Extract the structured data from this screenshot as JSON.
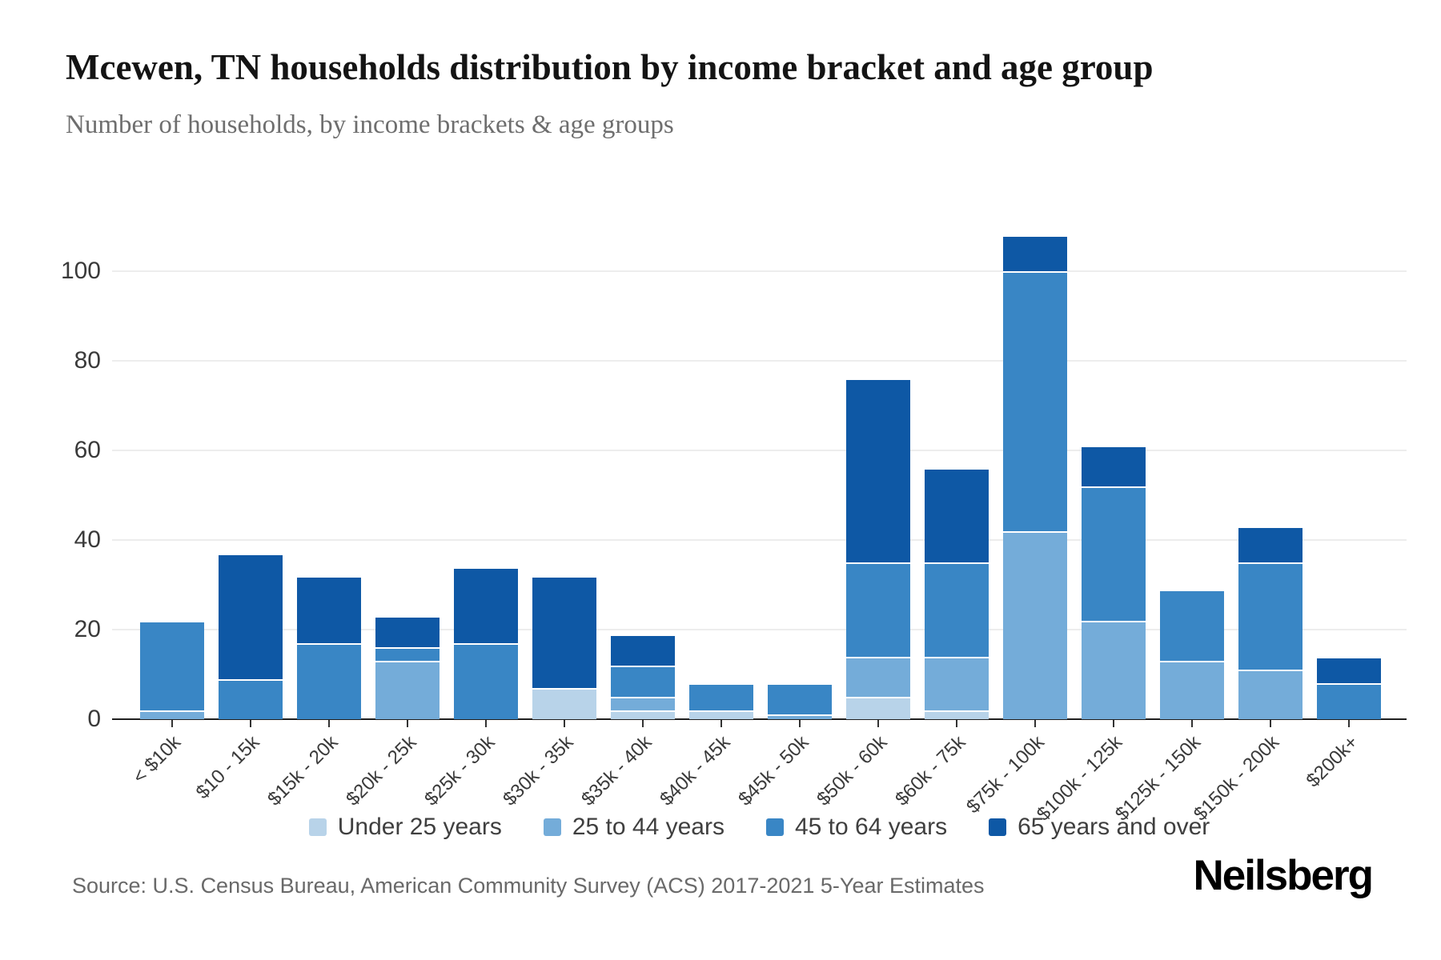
{
  "header": {
    "title": "Mcewen, TN households distribution by income bracket and age group",
    "subtitle": "Number of households, by income brackets & age groups"
  },
  "chart_data": {
    "type": "bar",
    "stacked": true,
    "title": "Mcewen, TN households distribution by income bracket and age group",
    "xlabel": "",
    "ylabel": "",
    "ylim": [
      0,
      110
    ],
    "y_ticks": [
      0,
      20,
      40,
      60,
      80,
      100
    ],
    "grid": "horizontal",
    "legend_position": "bottom",
    "categories": [
      "< $10k",
      "$10 - 15k",
      "$15k - 20k",
      "$20k - 25k",
      "$25k - 30k",
      "$30k - 35k",
      "$35k - 40k",
      "$40k - 45k",
      "$45k - 50k",
      "$50k - 60k",
      "$60k - 75k",
      "$75k - 100k",
      "$100k - 125k",
      "$125k - 150k",
      "$150k - 200k",
      "$200k+"
    ],
    "series": [
      {
        "name": "Under 25 years",
        "color": "#b8d3e9",
        "values": [
          0,
          0,
          0,
          0,
          0,
          7,
          2,
          2,
          0,
          5,
          2,
          0,
          0,
          0,
          0,
          0
        ]
      },
      {
        "name": "25 to 44 years",
        "color": "#74acd9",
        "values": [
          2,
          0,
          0,
          13,
          0,
          0,
          3,
          0,
          1,
          9,
          12,
          42,
          22,
          13,
          11,
          0
        ]
      },
      {
        "name": "45 to 64 years",
        "color": "#3986c5",
        "values": [
          20,
          9,
          17,
          3,
          17,
          0,
          7,
          6,
          7,
          21,
          21,
          58,
          30,
          16,
          24,
          8
        ]
      },
      {
        "name": "65 years and over",
        "color": "#0e58a5",
        "values": [
          0,
          28,
          15,
          7,
          17,
          25,
          7,
          0,
          0,
          41,
          21,
          8,
          9,
          0,
          8,
          6
        ]
      }
    ],
    "totals": [
      22,
      37,
      32,
      23,
      34,
      32,
      19,
      8,
      8,
      76,
      56,
      108,
      61,
      29,
      43,
      14
    ]
  },
  "footer": {
    "source": "Source: U.S. Census Bureau, American Community Survey (ACS) 2017-2021 5-Year Estimates",
    "brand": "Neilsberg"
  }
}
